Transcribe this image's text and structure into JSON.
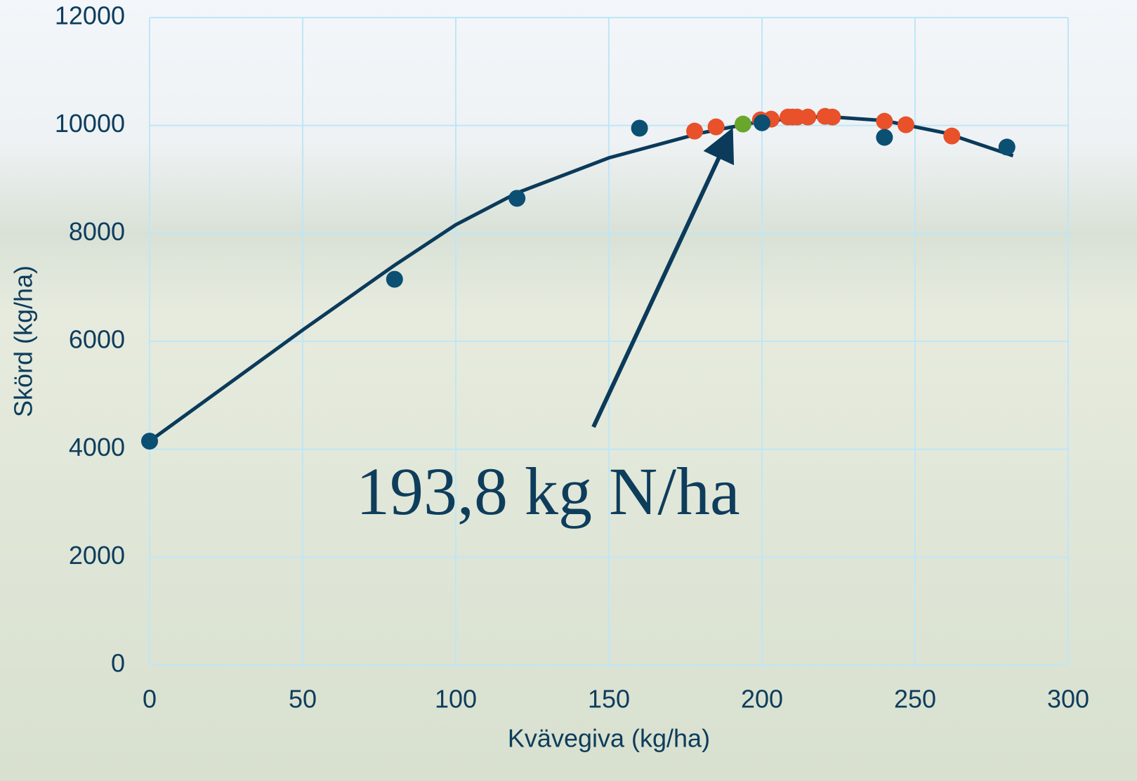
{
  "chart_data": {
    "type": "scatter",
    "x_label": "Kvävegiva (kg/ha)",
    "y_label": "Skörd (kg/ha)",
    "annotation": "193,8 kg N/ha",
    "xlim": [
      0,
      300
    ],
    "xticks": [
      0,
      50,
      100,
      150,
      200,
      250,
      300
    ],
    "ylim": [
      0,
      12000
    ],
    "yticks": [
      0,
      2000,
      4000,
      6000,
      8000,
      10000,
      12000
    ],
    "grid": true,
    "series": [
      {
        "type": "line",
        "color": "#0b3a5a",
        "x": [
          0,
          50,
          80,
          100,
          120,
          150,
          180,
          200,
          220,
          240,
          260,
          282
        ],
        "values": [
          4150,
          6210,
          7410,
          8160,
          8750,
          9400,
          9860,
          10080,
          10170,
          10090,
          9860,
          9440
        ]
      },
      {
        "type": "scatter",
        "color": "#e8512a",
        "x": [
          178,
          185,
          199.5,
          203,
          208.5,
          210,
          211.5,
          215,
          220.6,
          223,
          240,
          247,
          262
        ],
        "values": [
          9896,
          9974,
          10104,
          10117,
          10156,
          10156,
          10156,
          10156,
          10169,
          10156,
          10078,
          10013,
          9805
        ]
      },
      {
        "type": "scatter",
        "color": "#0b4f73",
        "x": [
          0,
          80,
          120,
          160,
          200,
          240,
          280
        ],
        "values": [
          4150,
          7150,
          8650,
          9950,
          10050,
          9780,
          9600
        ]
      },
      {
        "type": "scatter",
        "color": "#6aa52c",
        "x": [
          193.8
        ],
        "values": [
          10026
        ]
      }
    ]
  }
}
